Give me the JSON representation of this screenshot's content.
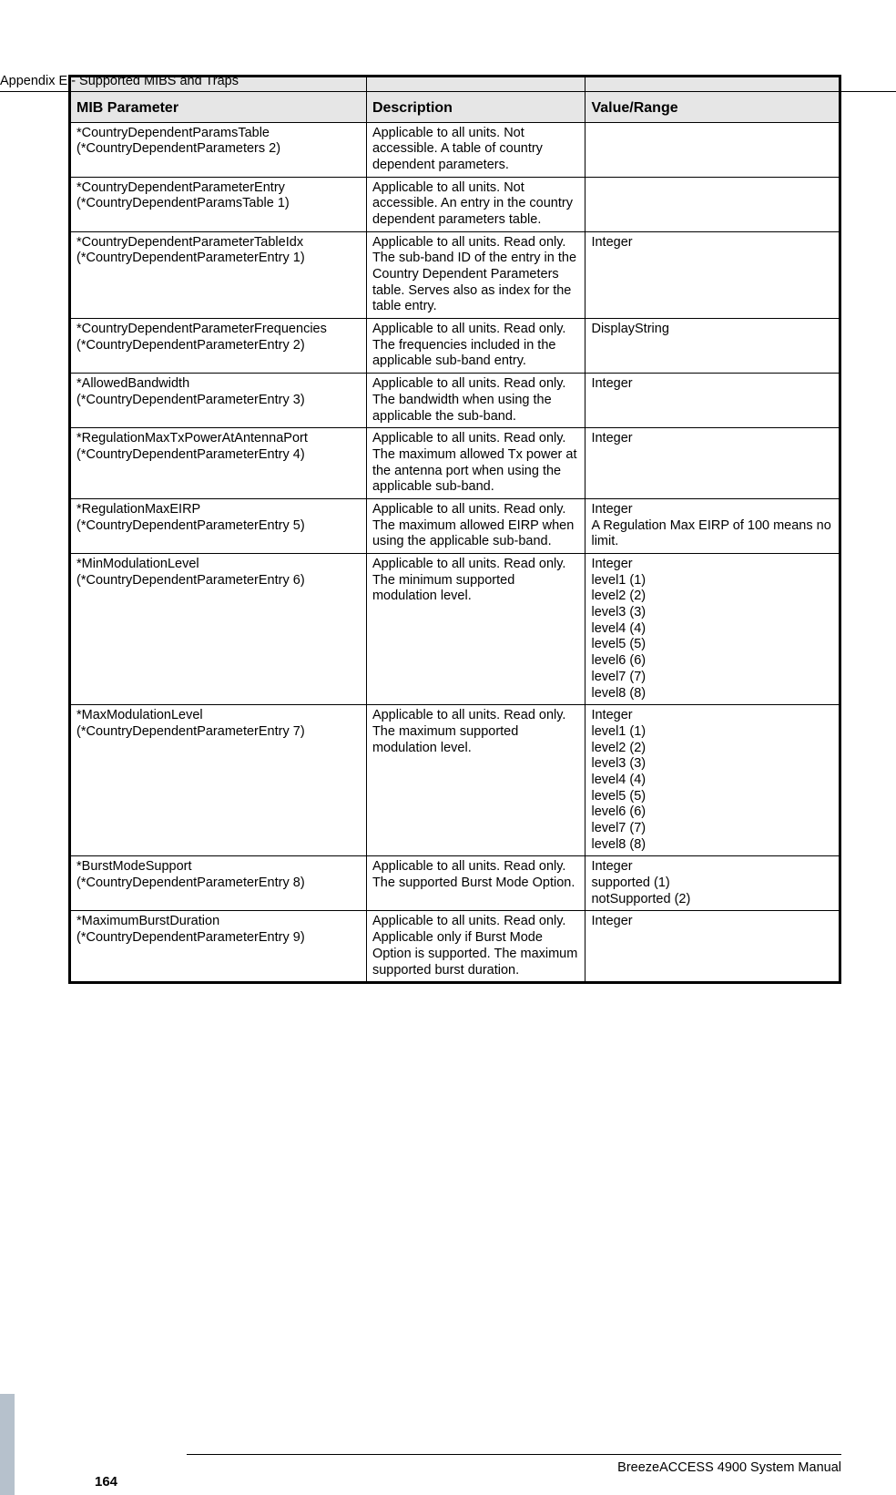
{
  "header_title": "Appendix E - Supported MIBS and Traps",
  "columns": [
    "MIB Parameter",
    "Description",
    "Value/Range"
  ],
  "rows": [
    {
      "p": "*CountryDependentParamsTable\n(*CountryDependentParameters 2)",
      "d": "Applicable to all units. Not accessible. A table of country dependent parameters.",
      "v": ""
    },
    {
      "p": "*CountryDependentParameterEntry\n(*CountryDependentParamsTable 1)",
      "d": "Applicable to all units. Not accessible. An entry in the country dependent parameters table.",
      "v": ""
    },
    {
      "p": "*CountryDependentParameterTableIdx\n(*CountryDependentParameterEntry 1)",
      "d": "Applicable to all units. Read only. The sub-band ID of the entry in the Country Dependent Parameters table. Serves also as index for the table entry.",
      "v": "Integer"
    },
    {
      "p": "*CountryDependentParameterFrequencies\n(*CountryDependentParameterEntry 2)",
      "d": "Applicable to all units. Read only. The frequencies included in the applicable sub-band entry.",
      "v": "DisplayString"
    },
    {
      "p": "*AllowedBandwidth\n(*CountryDependentParameterEntry 3)",
      "d": "Applicable to all units. Read only. The bandwidth when using the applicable the sub-band.",
      "v": "Integer"
    },
    {
      "p": "*RegulationMaxTxPowerAtAntennaPort\n(*CountryDependentParameterEntry 4)",
      "d": "Applicable to all units. Read only. The maximum allowed Tx power at the antenna port when using the applicable sub-band.",
      "v": "Integer"
    },
    {
      "p": "*RegulationMaxEIRP\n(*CountryDependentParameterEntry 5)",
      "d": "Applicable to all units. Read only. The maximum allowed EIRP when using the applicable sub-band.",
      "v": "Integer\nA Regulation Max EIRP of 100 means no limit."
    },
    {
      "p": "*MinModulationLevel\n(*CountryDependentParameterEntry 6)",
      "d": "Applicable to all units. Read only. The minimum supported modulation level.",
      "v": "Integer\nlevel1 (1)\nlevel2 (2)\nlevel3 (3)\nlevel4 (4)\nlevel5 (5)\nlevel6 (6)\nlevel7 (7)\nlevel8 (8)"
    },
    {
      "p": "*MaxModulationLevel\n(*CountryDependentParameterEntry 7)",
      "d": "Applicable to all units. Read only. The maximum supported modulation level.",
      "v": "Integer\nlevel1 (1)\nlevel2 (2)\nlevel3 (3)\nlevel4 (4)\nlevel5 (5)\nlevel6 (6)\nlevel7 (7)\nlevel8 (8)"
    },
    {
      "p": "*BurstModeSupport\n(*CountryDependentParameterEntry 8)",
      "d": "Applicable to all units. Read only. The supported Burst Mode Option.",
      "v": "Integer\nsupported (1)\nnotSupported (2)"
    },
    {
      "p": "*MaximumBurstDuration\n(*CountryDependentParameterEntry 9)",
      "d": "Applicable to all units. Read only. Applicable only if Burst Mode Option is supported. The maximum supported burst duration.",
      "v": "Integer"
    }
  ],
  "footer_text": "BreezeACCESS 4900 System Manual",
  "page_number": "164"
}
